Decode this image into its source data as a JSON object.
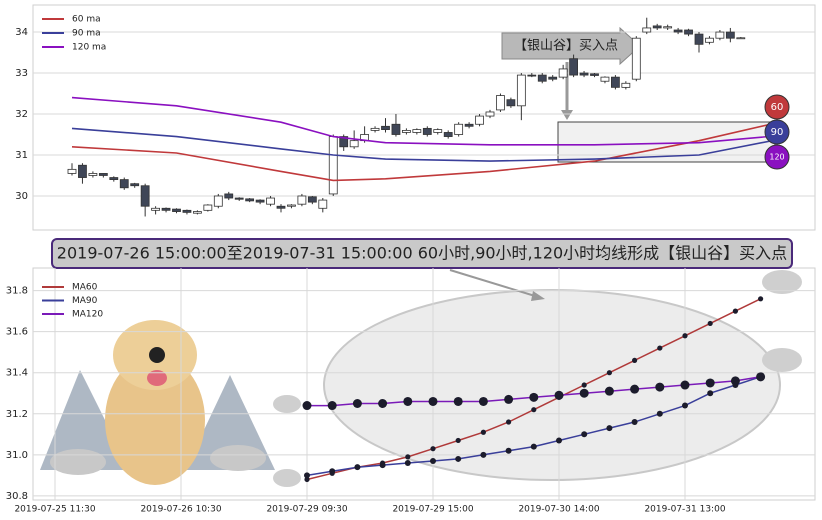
{
  "chart_data": [
    {
      "type": "candlestick",
      "open": [
        30.55,
        30.75,
        30.5,
        30.55,
        30.45,
        30.4,
        30.3,
        30.25,
        29.65,
        29.7,
        29.68,
        29.65,
        29.58,
        29.65,
        29.75,
        30.05,
        29.95,
        29.93,
        29.9,
        29.8,
        29.75,
        29.75,
        29.8,
        29.98,
        29.7,
        30.05,
        31.45,
        31.2,
        31.35,
        31.6,
        31.7,
        31.75,
        31.55,
        31.55,
        31.65,
        31.55,
        31.55,
        31.5,
        31.75,
        31.75,
        31.95,
        32.1,
        32.35,
        32.2,
        32.95,
        32.95,
        32.9,
        32.9,
        33.35,
        33.0,
        32.98,
        32.8,
        32.9,
        32.65,
        32.85,
        34.0,
        34.15,
        34.1,
        34.05,
        34.05,
        33.95,
        33.75,
        33.85,
        34.0,
        33.85
      ],
      "close": [
        30.65,
        30.45,
        30.55,
        30.5,
        30.4,
        30.2,
        30.25,
        29.75,
        29.7,
        29.65,
        29.62,
        29.6,
        29.62,
        29.78,
        30.0,
        29.95,
        29.92,
        29.88,
        29.85,
        29.95,
        29.7,
        29.78,
        30.0,
        29.85,
        29.9,
        31.45,
        31.2,
        31.35,
        31.5,
        31.65,
        31.62,
        31.5,
        31.6,
        31.62,
        31.5,
        31.62,
        31.45,
        31.75,
        31.7,
        31.95,
        32.05,
        32.45,
        32.2,
        32.95,
        32.93,
        32.8,
        32.85,
        33.1,
        32.95,
        32.95,
        32.94,
        32.9,
        32.65,
        32.75,
        33.85,
        34.1,
        34.1,
        34.13,
        34.0,
        33.95,
        33.7,
        33.85,
        34.0,
        33.85,
        33.86
      ],
      "high": [
        30.8,
        30.8,
        30.6,
        30.55,
        30.48,
        30.45,
        30.32,
        30.3,
        29.75,
        29.72,
        29.7,
        29.67,
        29.65,
        29.8,
        30.05,
        30.1,
        29.97,
        29.95,
        29.92,
        30.0,
        29.8,
        29.8,
        30.05,
        30.0,
        29.95,
        31.5,
        31.5,
        31.6,
        31.7,
        31.7,
        31.9,
        32.0,
        31.65,
        31.65,
        31.7,
        31.65,
        31.6,
        31.8,
        31.8,
        32.0,
        32.1,
        32.5,
        32.4,
        33.0,
        33.0,
        33.0,
        32.95,
        33.2,
        33.45,
        33.05,
        33.0,
        32.92,
        32.95,
        32.8,
        33.9,
        34.35,
        34.2,
        34.18,
        34.1,
        34.08,
        34.0,
        33.9,
        34.05,
        34.1,
        33.88
      ],
      "low": [
        30.5,
        30.3,
        30.45,
        30.45,
        30.35,
        30.15,
        30.2,
        29.5,
        29.55,
        29.6,
        29.58,
        29.55,
        29.55,
        29.62,
        29.7,
        29.9,
        29.88,
        29.85,
        29.8,
        29.75,
        29.6,
        29.7,
        29.75,
        29.8,
        29.6,
        30.0,
        31.1,
        31.15,
        31.3,
        31.55,
        31.55,
        31.45,
        31.5,
        31.5,
        31.45,
        31.5,
        31.4,
        31.45,
        31.65,
        31.7,
        31.9,
        32.05,
        32.15,
        31.85,
        32.9,
        32.75,
        32.8,
        32.85,
        32.9,
        32.9,
        32.9,
        32.75,
        32.6,
        32.6,
        32.8,
        33.95,
        34.05,
        34.05,
        33.95,
        33.9,
        33.5,
        33.7,
        33.8,
        33.75,
        33.84
      ],
      "up_color": "#ffffff",
      "down_color": "#3f4657",
      "ma_x": [
        0,
        10,
        20,
        25,
        30,
        40,
        50,
        60,
        68
      ],
      "series": [
        {
          "name": "60 ma",
          "color": "#c0393b",
          "values": [
            31.2,
            31.05,
            30.6,
            30.38,
            30.42,
            30.6,
            30.85,
            31.35,
            31.82
          ]
        },
        {
          "name": "90 ma",
          "color": "#3a3f9a",
          "values": [
            31.65,
            31.45,
            31.15,
            31.0,
            30.9,
            30.85,
            30.9,
            31.0,
            31.4
          ]
        },
        {
          "name": "120 ma",
          "color": "#8a10c0",
          "values": [
            32.4,
            32.2,
            31.8,
            31.45,
            31.3,
            31.25,
            31.25,
            31.3,
            31.48
          ]
        }
      ],
      "ylim": [
        29.17,
        34.66
      ],
      "yticks": [
        30,
        31,
        32,
        33,
        34
      ],
      "grid": true
    },
    {
      "type": "line",
      "categories": [
        "2019-07-25 11:30",
        null,
        null,
        null,
        null,
        "2019-07-26 10:30",
        null,
        null,
        null,
        null,
        "2019-07-29 09:30",
        null,
        null,
        null,
        null,
        "2019-07-29 15:00",
        null,
        null,
        null,
        null,
        "2019-07-30 14:00",
        null,
        null,
        null,
        null,
        "2019-07-31 13:00",
        null,
        null,
        null,
        null,
        null
      ],
      "series": [
        {
          "name": "MA60",
          "color": "#b03a3a",
          "values": [
            null,
            null,
            null,
            null,
            null,
            null,
            null,
            null,
            null,
            null,
            30.88,
            30.91,
            30.94,
            30.96,
            30.99,
            31.03,
            31.07,
            31.11,
            31.16,
            31.22,
            31.28,
            31.34,
            31.4,
            31.46,
            31.52,
            31.58,
            31.64,
            31.7,
            31.76,
            null,
            null
          ]
        },
        {
          "name": "MA90",
          "color": "#3a3f9a",
          "values": [
            null,
            null,
            null,
            null,
            null,
            null,
            null,
            null,
            null,
            null,
            30.9,
            30.92,
            30.94,
            30.95,
            30.96,
            30.97,
            30.98,
            31.0,
            31.02,
            31.04,
            31.07,
            31.1,
            31.13,
            31.16,
            31.2,
            31.24,
            31.3,
            31.34,
            31.38,
            null,
            null
          ]
        },
        {
          "name": "MA120",
          "color": "#7a1ab8",
          "values": [
            null,
            null,
            null,
            null,
            null,
            null,
            null,
            null,
            null,
            null,
            31.24,
            31.24,
            31.25,
            31.25,
            31.26,
            31.26,
            31.26,
            31.26,
            31.27,
            31.28,
            31.29,
            31.3,
            31.31,
            31.32,
            31.33,
            31.34,
            31.35,
            31.36,
            31.38,
            null,
            null
          ]
        }
      ],
      "ylim": [
        30.78,
        31.91
      ],
      "yticks": [
        30.8,
        {
          "value": 31,
          "label": "31.0"
        },
        31.2,
        31.4,
        31.6,
        31.8
      ],
      "grid": true
    }
  ],
  "annotations": {
    "arrow_label": "【银山谷】买入点",
    "badges": [
      "60",
      "90",
      "120"
    ],
    "banner": "2019-07-26 15:00:00至2019-07-31 15:00:00 60小时,90小时,120小时均线形成【银山谷】买入点"
  }
}
